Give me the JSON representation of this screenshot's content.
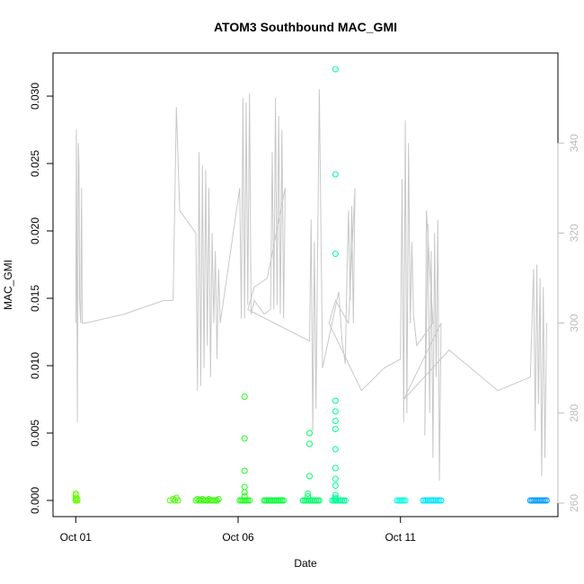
{
  "chart_data": {
    "type": "scatter",
    "title": "ATOM3 Southbound MAC_GMI",
    "xlabel": "Date",
    "ylabel": "MAC_GMI",
    "x_ticks": [
      {
        "day": 1,
        "label": "Oct 01"
      },
      {
        "day": 6,
        "label": "Oct 06"
      },
      {
        "day": 11,
        "label": "Oct 11"
      }
    ],
    "x_range_days": [
      0.3,
      15.85
    ],
    "ylim": [
      -0.0012,
      0.0332
    ],
    "y_ticks": [
      {
        "value": 0.0,
        "label": "0.000"
      },
      {
        "value": 0.005,
        "label": "0.005"
      },
      {
        "value": 0.01,
        "label": "0.010"
      },
      {
        "value": 0.015,
        "label": "0.015"
      },
      {
        "value": 0.02,
        "label": "0.020"
      },
      {
        "value": 0.025,
        "label": "0.025"
      },
      {
        "value": 0.03,
        "label": "0.030"
      }
    ],
    "y2lim": [
      257,
      360
    ],
    "y2_ticks": [
      {
        "value": 260,
        "label": "260"
      },
      {
        "value": 280,
        "label": "280"
      },
      {
        "value": 300,
        "label": "300"
      },
      {
        "value": 320,
        "label": "320"
      },
      {
        "value": 340,
        "label": "340"
      }
    ],
    "grid": false,
    "line_color": "#c8c8c8",
    "right_axis_color": "#bdbdbd",
    "line_series": {
      "x": [
        1.0,
        1.02,
        1.05,
        1.08,
        1.1,
        1.12,
        1.15,
        1.18,
        1.2,
        1.3,
        2.5,
        3.7,
        4.0,
        4.1,
        4.2,
        4.7,
        4.75,
        4.8,
        4.85,
        4.9,
        4.95,
        5.0,
        5.05,
        5.1,
        5.15,
        5.2,
        5.25,
        5.3,
        5.35,
        5.4,
        5.45,
        6.05,
        6.1,
        6.15,
        6.2,
        6.25,
        6.3,
        6.35,
        6.4,
        6.5,
        6.8,
        7.0,
        7.05,
        7.1,
        7.15,
        7.2,
        7.25,
        7.3,
        7.35,
        7.4,
        7.45,
        6.9,
        6.5,
        6.3,
        8.2,
        8.25,
        8.3,
        8.35,
        8.4,
        8.5,
        8.6,
        9.1,
        9.2,
        9.3,
        9.35,
        9.4,
        9.45,
        9.5,
        9.55,
        9.6,
        9.4,
        9.0,
        8.8,
        9.8,
        10.5,
        11.0,
        11.05,
        11.1,
        11.15,
        11.2,
        11.25,
        11.3,
        11.35,
        11.4,
        11.5,
        12.0,
        11.8,
        11.75,
        11.85,
        11.9,
        11.95,
        12.0,
        12.05,
        12.1,
        12.15,
        12.2,
        12.25,
        11.1,
        12.5,
        14.0,
        15.0,
        15.1,
        15.15,
        15.2,
        15.25,
        15.3,
        15.35,
        15.4,
        15.45,
        15.5
      ],
      "y": [
        300,
        343,
        278,
        340,
        335,
        305,
        300,
        330,
        300,
        300,
        302,
        305,
        305,
        348,
        325,
        320,
        285,
        338,
        286,
        335,
        290,
        334,
        295,
        330,
        288,
        320,
        300,
        316,
        292,
        312,
        300,
        330,
        301,
        350,
        301,
        349,
        304,
        351,
        302,
        305,
        302,
        303,
        338,
        303,
        350,
        304,
        346,
        302,
        343,
        301,
        330,
        310,
        308,
        303,
        296,
        323,
        276,
        318,
        281,
        352,
        290,
        307,
        296,
        291,
        310,
        325,
        305,
        326,
        300,
        330,
        300,
        305,
        300,
        285,
        290,
        292,
        332,
        278,
        345,
        280,
        340,
        300,
        318,
        302,
        295,
        300,
        325,
        275,
        322,
        280,
        316,
        270,
        320,
        288,
        323,
        265,
        300,
        283,
        294,
        285,
        288,
        312,
        276,
        313,
        282,
        310,
        266,
        308,
        270,
        300
      ]
    },
    "series": [
      {
        "color": "#66ff00",
        "x": [
          1.0,
          1.0,
          1.0,
          1.0,
          1.0,
          1.05,
          1.05
        ],
        "y": [
          0.0,
          0.0001,
          0.0002,
          0.0004,
          0.0005,
          0.0,
          0.0001
        ]
      },
      {
        "color": "#4cff00",
        "x": [
          3.9,
          4.0,
          4.05,
          4.1,
          4.15
        ],
        "y": [
          0.0,
          0.0001,
          0.0,
          0.0002,
          0.0
        ]
      },
      {
        "color": "#33ff00",
        "x": [
          4.7,
          4.75,
          4.8,
          4.85,
          4.9,
          4.95,
          5.0,
          5.05,
          5.1,
          5.15,
          5.2,
          5.25,
          5.3,
          5.35,
          5.4
        ],
        "y": [
          0,
          0.0001,
          0,
          0,
          0.0001,
          0,
          0,
          0,
          0.0001,
          0,
          0,
          0,
          0,
          0,
          0.0001
        ]
      },
      {
        "color": "#1aff1a",
        "x": [
          6.05,
          6.1,
          6.15,
          6.2,
          6.25,
          6.3,
          6.35,
          6.2,
          6.2,
          6.2,
          6.2,
          6.2,
          6.2,
          6.2
        ],
        "y": [
          0,
          0,
          0,
          0,
          0,
          0,
          0,
          0.0003,
          0.0006,
          0.001,
          0.0022,
          0.0046,
          0.0077,
          0.0
        ]
      },
      {
        "color": "#00ff33",
        "x": [
          6.8,
          6.85,
          6.9,
          6.95,
          7.0,
          7.05,
          7.1,
          7.15,
          7.2,
          7.25,
          7.3,
          7.35,
          7.4
        ],
        "y": [
          0,
          0,
          0,
          0,
          0,
          0,
          0,
          0,
          0,
          0,
          0,
          0,
          0
        ]
      },
      {
        "color": "#00ff66",
        "x": [
          8.0,
          8.05,
          8.1,
          8.15,
          8.2,
          8.25,
          8.3,
          8.35,
          8.4,
          8.45,
          8.5,
          8.15,
          8.15,
          8.2,
          8.2,
          8.2
        ],
        "y": [
          0,
          0,
          0,
          0,
          0,
          0,
          0,
          0,
          0,
          0,
          0,
          0.0003,
          0.0005,
          0.0018,
          0.0042,
          0.005
        ]
      },
      {
        "color": "#00ff99",
        "x": [
          8.9,
          8.95,
          9.0,
          9.05,
          9.1,
          9.15,
          9.2,
          9.25,
          9.3,
          9.0,
          9.0,
          9.0,
          9.0,
          9.0,
          9.0,
          9.0,
          9.0,
          9.0,
          9.0,
          9.0,
          9.0,
          9.0,
          9.0,
          9.0
        ],
        "y": [
          0,
          0,
          0,
          0,
          0,
          0,
          0,
          0,
          0,
          0.0002,
          0.0004,
          0.0011,
          0.0016,
          0.0024,
          0.0038,
          0.0053,
          0.0059,
          0.0066,
          0.0074,
          0.0183,
          0.0242,
          0.032,
          0.0,
          0.0001
        ]
      },
      {
        "color": "#00ffdd",
        "x": [
          10.9,
          10.95,
          11.0,
          11.05,
          11.1,
          11.15
        ],
        "y": [
          0,
          0,
          0,
          0,
          0,
          0
        ]
      },
      {
        "color": "#00e5ff",
        "x": [
          11.7,
          11.75,
          11.8,
          11.85,
          11.9,
          11.95,
          12.0,
          12.05,
          12.1,
          12.15,
          12.2,
          12.25
        ],
        "y": [
          0,
          0,
          0,
          0,
          0,
          0,
          0,
          0,
          0,
          0,
          0,
          0
        ]
      },
      {
        "color": "#0099ff",
        "x": [
          15.0,
          15.05,
          15.1,
          15.15,
          15.2,
          15.25,
          15.3,
          15.35,
          15.4,
          15.45,
          15.5
        ],
        "y": [
          0,
          0,
          0,
          0,
          0,
          0,
          0,
          0,
          0,
          0,
          0
        ]
      }
    ]
  }
}
